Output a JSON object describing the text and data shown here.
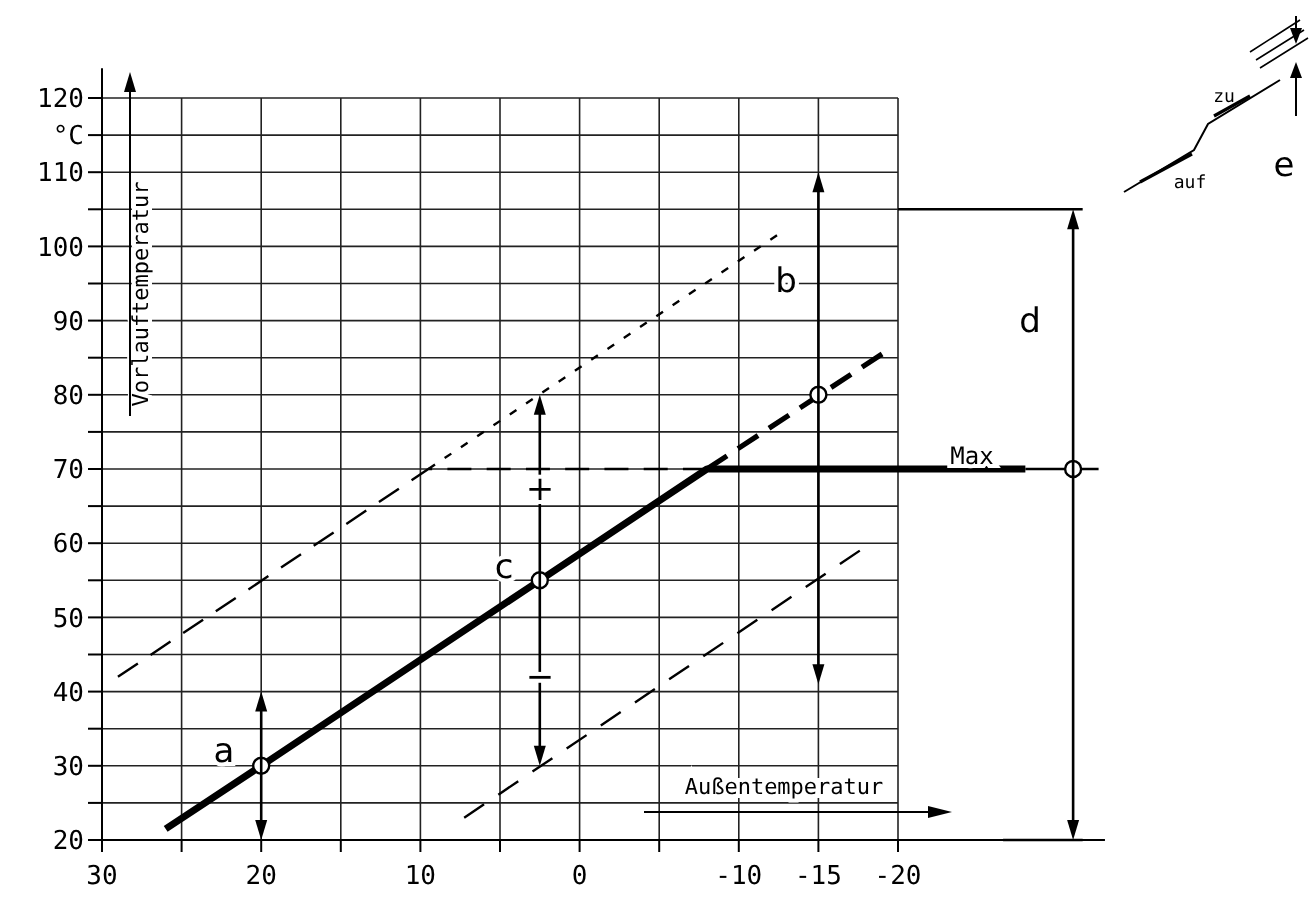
{
  "chart_data": {
    "type": "line",
    "xlabel": "Außentemperatur",
    "ylabel": "Vorlauftemperatur",
    "xlim": [
      30,
      -33
    ],
    "ylim": [
      20,
      124
    ],
    "xticks": [
      30,
      {
        "value": 25,
        "label": null
      },
      20,
      {
        "value": 15,
        "label": null
      },
      10,
      {
        "value": 5,
        "label": null
      },
      0,
      {
        "value": -5,
        "label": null
      },
      -10,
      -15,
      -20
    ],
    "yticks": [
      20,
      {
        "value": 25,
        "label": null
      },
      30,
      {
        "value": 35,
        "label": null
      },
      40,
      {
        "value": 45,
        "label": null
      },
      50,
      {
        "value": 55,
        "label": null
      },
      60,
      {
        "value": 65,
        "label": null
      },
      70,
      {
        "value": 75,
        "label": null
      },
      80,
      {
        "value": 85,
        "label": null
      },
      90,
      {
        "value": 95,
        "label": null
      },
      100,
      {
        "value": 105,
        "label": null
      },
      110,
      {
        "value": 115,
        "label": "°C"
      },
      120
    ],
    "grid": true,
    "series": [
      {
        "color": "#000000",
        "line_style": "solid",
        "x": [
          26,
          20,
          2.5,
          -8,
          -28
        ],
        "values": [
          21.5,
          30,
          55,
          70,
          70
        ]
      },
      {
        "color": "#000000",
        "line_style": "dashed",
        "x": [
          -8,
          -19
        ],
        "values": [
          70,
          85.5
        ]
      },
      {
        "color": "#000000",
        "line_style": "dashed",
        "x": [
          29,
          9.5,
          -8
        ],
        "values": [
          42,
          70,
          70
        ]
      },
      {
        "color": "#000000",
        "line_style": "dotted",
        "x": [
          9.5,
          -12.4
        ],
        "values": [
          70,
          101.5
        ]
      },
      {
        "color": "#000000",
        "line_style": "dashed",
        "x": [
          7.25,
          -17.6
        ],
        "values": [
          23,
          59
        ]
      },
      {
        "color": "#000000",
        "line_style": "solid",
        "x": [
          -28,
          -32.6
        ],
        "values": [
          70,
          70
        ]
      },
      {
        "color": "#000000",
        "line_style": "solid",
        "x": [
          -20,
          -31.6
        ],
        "values": [
          105,
          105
        ]
      },
      {
        "color": "#000000",
        "line_style": "solid",
        "x": [
          -26.6,
          -31.6
        ],
        "values": [
          20,
          20
        ]
      },
      {
        "type": "scatter",
        "marker": "circle",
        "color": "#000000",
        "x": [
          20,
          2.5,
          -15,
          -31
        ],
        "values": [
          30,
          55,
          80,
          70
        ]
      }
    ],
    "annotations": [
      "a",
      "c",
      "b",
      "d",
      "Max",
      "+",
      "−",
      "zu",
      "auf",
      "e"
    ]
  }
}
